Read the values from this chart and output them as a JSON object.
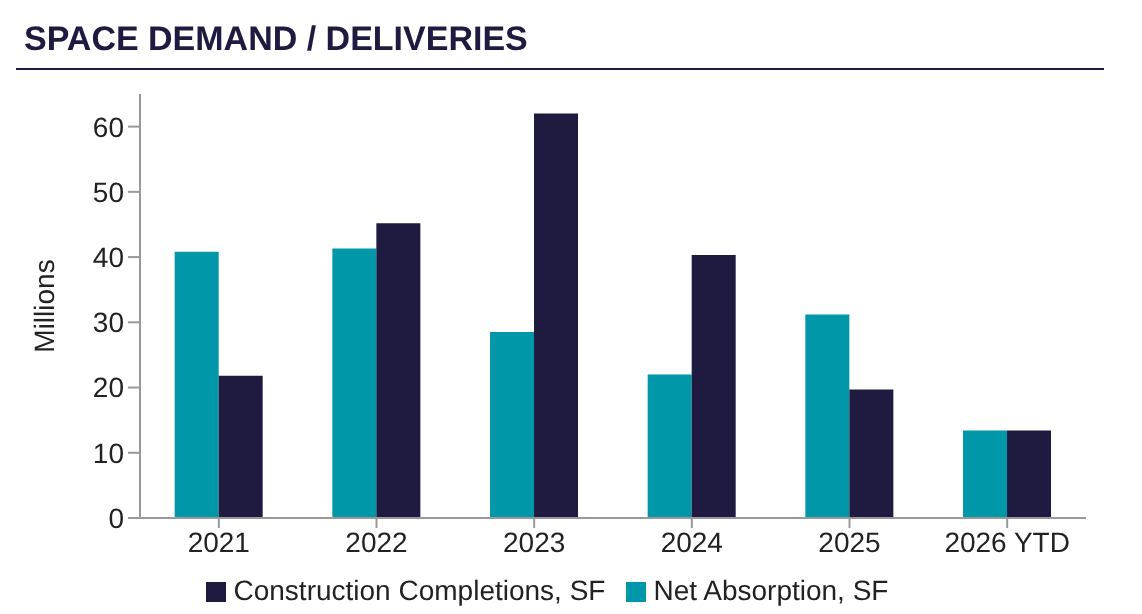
{
  "chart_data": {
    "type": "bar",
    "title": "SPACE DEMAND / DELIVERIES",
    "ylabel": "Millions",
    "categories": [
      "2021",
      "2022",
      "2023",
      "2024",
      "2025",
      "2026 YTD"
    ],
    "series": [
      {
        "name": "Net Absorption, SF",
        "color": "#0097a9",
        "values": [
          40.8,
          41.3,
          28.5,
          22,
          31.2,
          13.4
        ]
      },
      {
        "name": "Construction Completions, SF",
        "color": "#1e1a40",
        "values": [
          21.8,
          45.2,
          62,
          40.3,
          19.7,
          13.4
        ]
      }
    ],
    "ylim": [
      0,
      65
    ],
    "yticks": [
      0,
      10,
      20,
      30,
      40,
      50,
      60
    ],
    "grid": false,
    "legend": "bottom"
  }
}
